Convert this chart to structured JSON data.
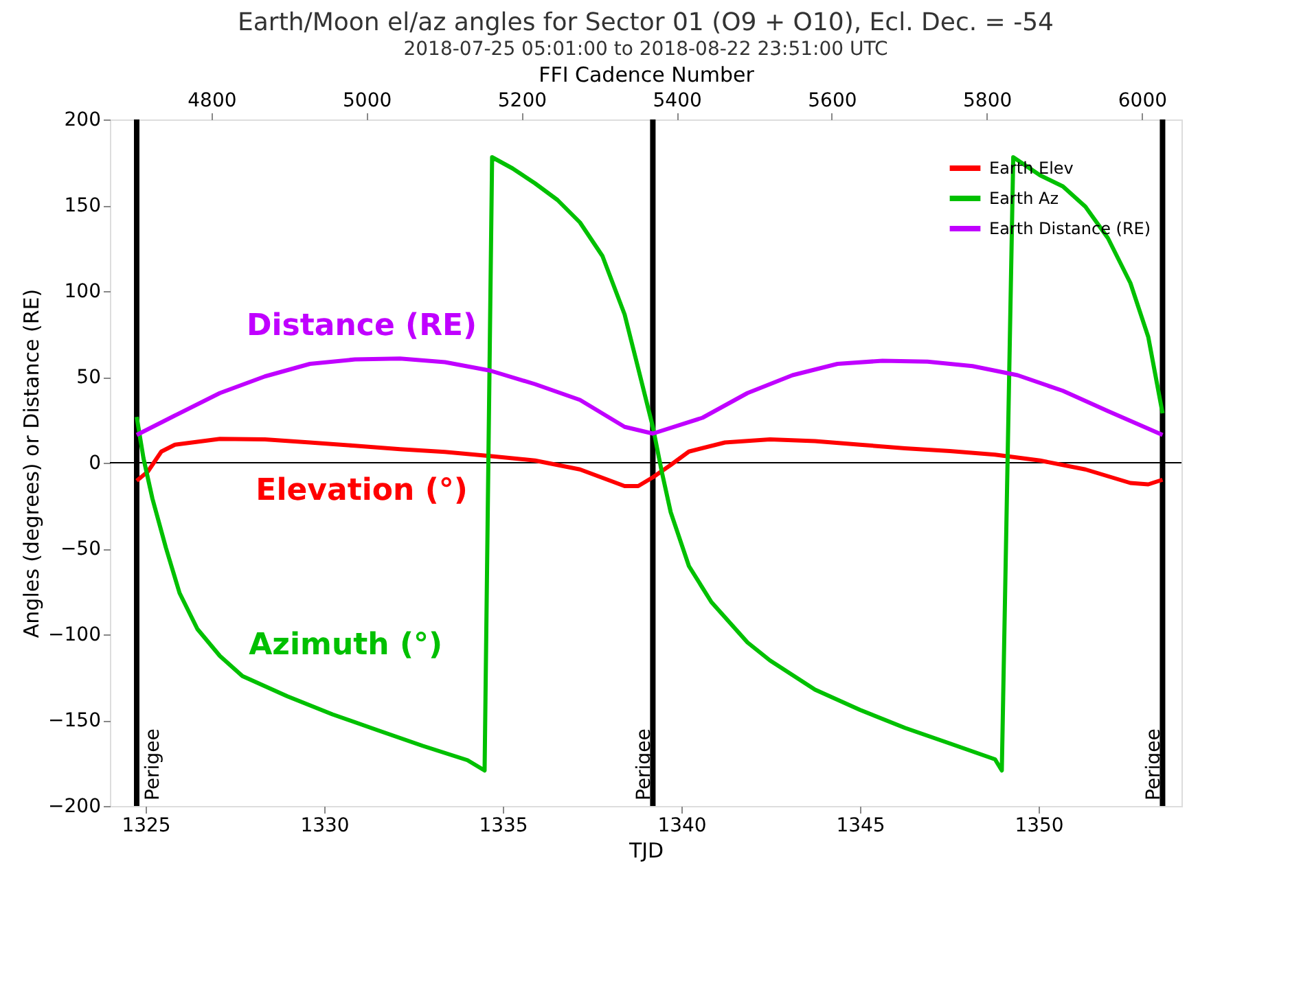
{
  "chart_data": {
    "type": "line",
    "title": "Earth/Moon el/az angles for Sector 01 (O9 + O10), Ecl. Dec. = -54",
    "subtitle": "2018-07-25 05:01:00 to 2018-08-22 23:51:00 UTC",
    "xlabel": "TJD",
    "ylabel": "Angles (degrees) or Distance (RE)",
    "x2label": "FFI Cadence Number",
    "xlim": [
      1324,
      1354
    ],
    "xticks": [
      1325,
      1330,
      1335,
      1340,
      1345,
      1350
    ],
    "x2lim": [
      4669,
      6051
    ],
    "x2ticks": [
      4800,
      5000,
      5200,
      5400,
      5600,
      5800,
      6000
    ],
    "ylim": [
      -200,
      200
    ],
    "yticks": [
      -200,
      -150,
      -100,
      -50,
      0,
      50,
      100,
      150,
      200
    ],
    "grid": false,
    "legend": "top right",
    "marker": "none",
    "line_style": "solid",
    "series": [
      {
        "name": "Earth Elev",
        "color": "#ff0000",
        "x": [
          1324.75,
          1325.06,
          1325.44,
          1325.82,
          1327.08,
          1328.34,
          1329.6,
          1330.86,
          1332.12,
          1333.38,
          1334.64,
          1335.9,
          1337.16,
          1338.41,
          1338.79,
          1339.2,
          1339.7,
          1340.21,
          1341.22,
          1342.48,
          1343.74,
          1345.0,
          1346.26,
          1347.52,
          1348.78,
          1350.04,
          1351.31,
          1352.57,
          1353.07,
          1353.47
        ],
        "values": [
          -10.5,
          -5.2,
          6.5,
          10.5,
          13.9,
          13.6,
          11.8,
          9.9,
          7.9,
          6.3,
          3.9,
          1.3,
          -3.9,
          -13.6,
          -13.6,
          -8.5,
          -1.3,
          6.5,
          11.8,
          13.6,
          12.6,
          10.5,
          8.4,
          6.8,
          4.7,
          1.3,
          -3.9,
          -11.8,
          -12.6,
          -9.9
        ]
      },
      {
        "name": "Earth Az",
        "color": "#00c000",
        "x": [
          1324.75,
          1324.94,
          1325.19,
          1325.57,
          1325.95,
          1326.45,
          1327.08,
          1327.71,
          1328.97,
          1330.23,
          1331.49,
          1332.75,
          1334.01,
          1334.49,
          1334.7,
          1335.27,
          1335.9,
          1336.53,
          1337.16,
          1337.79,
          1338.41,
          1338.79,
          1339.2,
          1339.45,
          1339.7,
          1340.21,
          1340.84,
          1341.85,
          1342.48,
          1343.74,
          1345.0,
          1346.26,
          1347.52,
          1348.78,
          1348.97,
          1349.29,
          1350.04,
          1350.68,
          1351.31,
          1351.94,
          1352.57,
          1353.07,
          1353.47
        ],
        "values": [
          26.7,
          2.6,
          -20.9,
          -49.7,
          -75.9,
          -96.9,
          -112.6,
          -124.3,
          -136.1,
          -146.6,
          -155.8,
          -164.9,
          -173.3,
          -179.3,
          178,
          171.5,
          162.8,
          153.1,
          140,
          120.4,
          86.4,
          55,
          20.9,
          -5.2,
          -28.8,
          -60.2,
          -81.2,
          -104.7,
          -115.2,
          -132.2,
          -144,
          -154.5,
          -163.6,
          -172.8,
          -179.3,
          178,
          167.5,
          161,
          149.2,
          130.9,
          104.7,
          73.3,
          28.8
        ]
      },
      {
        "name": "Earth Distance (RE)",
        "color": "#c000ff",
        "x": [
          1324.75,
          1325.82,
          1327.08,
          1328.34,
          1329.6,
          1330.86,
          1332.12,
          1333.38,
          1334.64,
          1335.9,
          1337.16,
          1338.41,
          1339.2,
          1340.59,
          1341.85,
          1343.11,
          1344.37,
          1345.63,
          1346.89,
          1348.15,
          1349.41,
          1350.68,
          1351.94,
          1353.47
        ],
        "values": [
          16.2,
          27.5,
          40.6,
          50.3,
          57.6,
          60.2,
          60.7,
          58.6,
          53.7,
          45.8,
          36.6,
          20.9,
          17,
          26.2,
          40.6,
          51,
          57.6,
          59.4,
          58.9,
          56.3,
          51,
          41.9,
          30.1,
          16.2
        ]
      }
    ],
    "ref_lines": [
      {
        "axis": "y",
        "value": 0,
        "color": "#000000"
      },
      {
        "axis": "x",
        "value": 1324.75,
        "label": "Perigee",
        "color": "#000000"
      },
      {
        "axis": "x",
        "value": 1339.2,
        "label": "Perigee",
        "color": "#000000"
      },
      {
        "axis": "x",
        "value": 1353.47,
        "label": "Perigee",
        "color": "#000000"
      }
    ],
    "annotations": [
      "Elevation (°)",
      "Azimuth (°)",
      "Distance (RE)"
    ]
  }
}
